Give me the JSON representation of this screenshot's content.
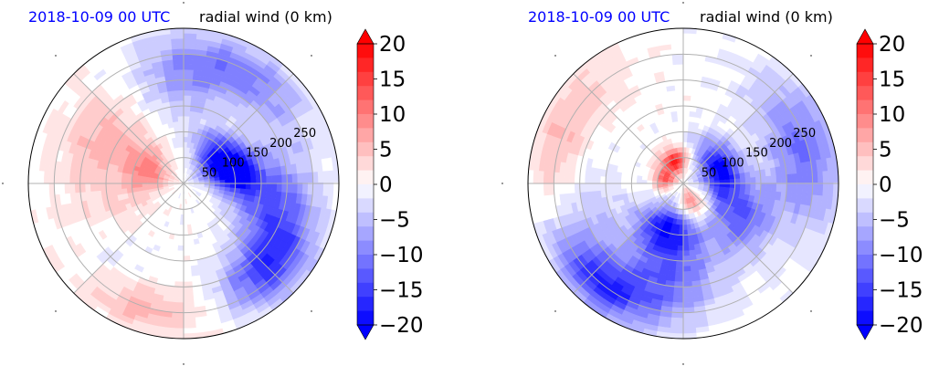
{
  "chart_data": [
    {
      "type": "polar-contourf",
      "panel": "left",
      "title_left": "2018-10-09 00 UTC",
      "title_right": "radial wind (0 km)",
      "title_left_color": "#0000ff",
      "radial_ticks": [
        50,
        100,
        150,
        200,
        250
      ],
      "radial_tick_labels": [
        "50",
        "100",
        "150",
        "200",
        "250"
      ],
      "rmax": 300,
      "grid": true,
      "angular_gridlines_deg": [
        0,
        45,
        90,
        135,
        180,
        225,
        270,
        315
      ],
      "colormap": "bwr",
      "colorbar": {
        "ticks": [
          "20",
          "15",
          "10",
          "5",
          "0",
          "−5",
          "−10",
          "−15",
          "−20"
        ],
        "vmin": -20,
        "vmax": 20,
        "extend": "both"
      },
      "field_features": [
        {
          "angle_deg": 35,
          "r": 80,
          "spread_deg": 35,
          "spread_r": 45,
          "value": -19
        },
        {
          "angle_deg": 10,
          "r": 110,
          "spread_deg": 25,
          "spread_r": 50,
          "value": -14
        },
        {
          "angle_deg": -15,
          "r": 180,
          "spread_deg": 30,
          "spread_r": 70,
          "value": -12
        },
        {
          "angle_deg": -45,
          "r": 230,
          "spread_deg": 25,
          "spread_r": 60,
          "value": -14
        },
        {
          "angle_deg": 60,
          "r": 240,
          "spread_deg": 35,
          "spread_r": 60,
          "value": -9
        },
        {
          "angle_deg": 90,
          "r": 200,
          "spread_deg": 25,
          "spread_r": 80,
          "value": -6
        },
        {
          "angle_deg": 160,
          "r": 70,
          "spread_deg": 35,
          "spread_r": 45,
          "value": 9
        },
        {
          "angle_deg": 150,
          "r": 170,
          "spread_deg": 25,
          "spread_r": 80,
          "value": 6
        },
        {
          "angle_deg": 195,
          "r": 160,
          "spread_deg": 30,
          "spread_r": 90,
          "value": 3
        },
        {
          "angle_deg": 250,
          "r": 250,
          "spread_deg": 30,
          "spread_r": 50,
          "value": 6
        },
        {
          "angle_deg": 225,
          "r": 210,
          "spread_deg": 25,
          "spread_r": 60,
          "value": -3
        }
      ]
    },
    {
      "type": "polar-contourf",
      "panel": "right",
      "title_left": "2018-10-09 00 UTC",
      "title_right": "radial wind (0 km)",
      "title_left_color": "#0000ff",
      "radial_ticks": [
        50,
        100,
        150,
        200,
        250
      ],
      "radial_tick_labels": [
        "50",
        "100",
        "150",
        "200",
        "250"
      ],
      "rmax": 300,
      "grid": true,
      "angular_gridlines_deg": [
        0,
        45,
        90,
        135,
        180,
        225,
        270,
        315
      ],
      "colormap": "bwr",
      "colorbar": {
        "ticks": [
          "20",
          "15",
          "10",
          "5",
          "0",
          "−5",
          "−10",
          "−15",
          "−20"
        ],
        "vmin": -20,
        "vmax": 20,
        "extend": "both"
      },
      "field_features": [
        {
          "angle_deg": 20,
          "r": 75,
          "spread_deg": 45,
          "spread_r": 40,
          "value": -20
        },
        {
          "angle_deg": 110,
          "r": 45,
          "spread_deg": 30,
          "spread_r": 25,
          "value": 17
        },
        {
          "angle_deg": 165,
          "r": 35,
          "spread_deg": 30,
          "spread_r": 20,
          "value": 14
        },
        {
          "angle_deg": 290,
          "r": 40,
          "spread_deg": 40,
          "spread_r": 30,
          "value": 10
        },
        {
          "angle_deg": 250,
          "r": 90,
          "spread_deg": 35,
          "spread_r": 50,
          "value": -17
        },
        {
          "angle_deg": -30,
          "r": 130,
          "spread_deg": 30,
          "spread_r": 60,
          "value": -12
        },
        {
          "angle_deg": 15,
          "r": 240,
          "spread_deg": 35,
          "spread_r": 70,
          "value": -11
        },
        {
          "angle_deg": 260,
          "r": 180,
          "spread_deg": 30,
          "spread_r": 80,
          "value": -12
        },
        {
          "angle_deg": 230,
          "r": 250,
          "spread_deg": 25,
          "spread_r": 50,
          "value": -15
        },
        {
          "angle_deg": 165,
          "r": 250,
          "spread_deg": 20,
          "spread_r": 50,
          "value": 5
        },
        {
          "angle_deg": 135,
          "r": 250,
          "spread_deg": 20,
          "spread_r": 60,
          "value": 3
        },
        {
          "angle_deg": 200,
          "r": 180,
          "spread_deg": 30,
          "spread_r": 60,
          "value": -4
        }
      ]
    }
  ]
}
